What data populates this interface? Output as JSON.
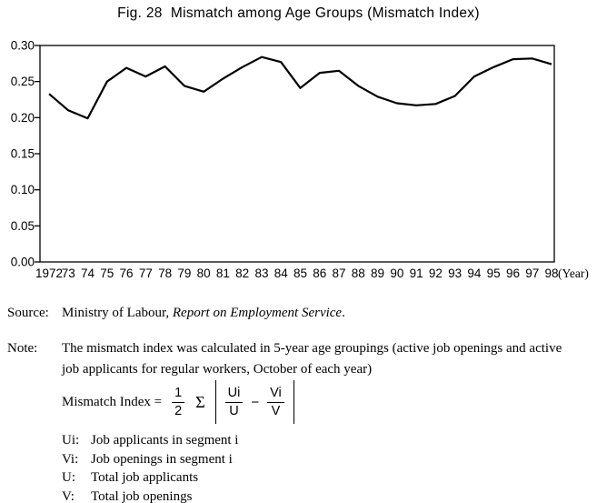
{
  "title": "Fig. 28  Mismatch among Age Groups (Mismatch Index)",
  "chart_data": {
    "type": "line",
    "title": "Fig. 28  Mismatch among Age Groups (Mismatch Index)",
    "x": [
      1972,
      1973,
      1974,
      1975,
      1976,
      1977,
      1978,
      1979,
      1980,
      1981,
      1982,
      1983,
      1984,
      1985,
      1986,
      1987,
      1988,
      1989,
      1990,
      1991,
      1992,
      1993,
      1994,
      1995,
      1996,
      1997,
      1998
    ],
    "x_tick_labels": [
      "1972",
      "73",
      "74",
      "75",
      "76",
      "77",
      "78",
      "79",
      "80",
      "81",
      "82",
      "83",
      "84",
      "85",
      "86",
      "87",
      "88",
      "89",
      "90",
      "91",
      "92",
      "93",
      "94",
      "95",
      "96",
      "97",
      "98"
    ],
    "x_axis_suffix": "(Year)",
    "values": [
      0.233,
      0.21,
      0.199,
      0.25,
      0.269,
      0.257,
      0.271,
      0.244,
      0.236,
      0.254,
      0.27,
      0.284,
      0.277,
      0.241,
      0.262,
      0.265,
      0.244,
      0.229,
      0.22,
      0.217,
      0.219,
      0.23,
      0.257,
      0.27,
      0.281,
      0.282,
      0.274
    ],
    "ylim": [
      0.0,
      0.3
    ],
    "y_ticks": [
      0.0,
      0.05,
      0.1,
      0.15,
      0.2,
      0.25,
      0.3
    ],
    "y_tick_decimals": 2,
    "grid": "off",
    "legend": "none",
    "line_color": "#000000",
    "xlabel": "",
    "ylabel": ""
  },
  "source": {
    "label": "Source:",
    "text_plain": "Ministry of Labour, ",
    "text_italic": "Report on Employment Service",
    "text_end": "."
  },
  "note": {
    "label": "Note:",
    "text": "The mismatch index was calculated in 5-year age groupings (active job openings and active job applicants for regular workers, October of each year)"
  },
  "formula": {
    "lhs": "Mismatch Index =",
    "frac_half": {
      "num": "1",
      "den": "2"
    },
    "sigma": "Σ",
    "term1": {
      "num": "Ui",
      "den": "U"
    },
    "minus": "−",
    "term2": {
      "num": "Vi",
      "den": "V"
    }
  },
  "definitions": [
    {
      "term": "Ui:",
      "desc": "Job applicants in segment i"
    },
    {
      "term": "Vi:",
      "desc": "Job openings in segment i"
    },
    {
      "term": "U:",
      "desc": "Total job applicants"
    },
    {
      "term": "V:",
      "desc": "Total job openings"
    }
  ]
}
